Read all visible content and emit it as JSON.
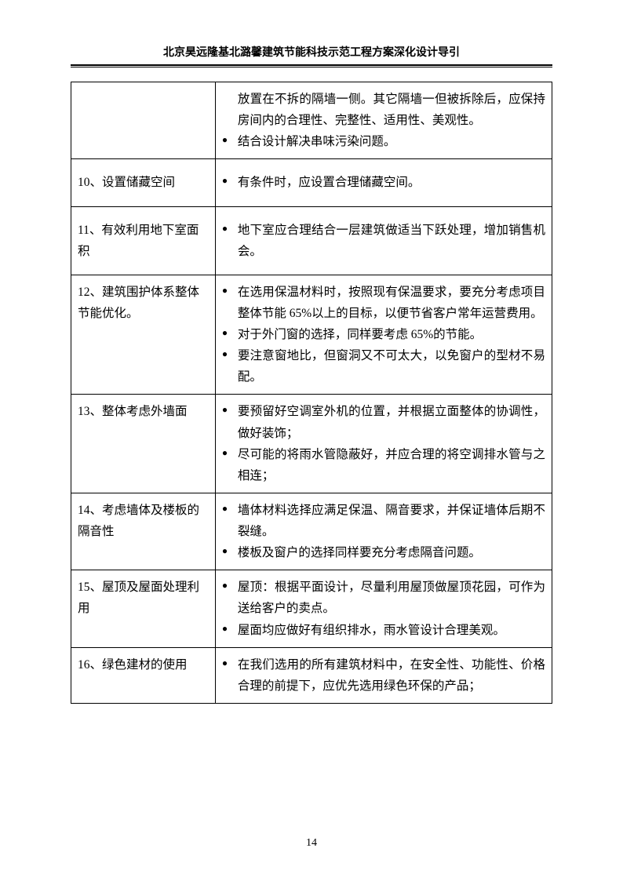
{
  "header": {
    "title": "北京昊远隆基北潞馨建筑节能科技示范工程方案深化设计导引"
  },
  "rows": [
    {
      "label": "",
      "items": [
        {
          "continuation": true,
          "text": "放置在不拆的隔墙一侧。其它隔墙一但被拆除后，应保持房间内的合理性、完整性、适用性、美观性。"
        },
        {
          "text": "结合设计解决串味污染问题。"
        }
      ]
    },
    {
      "label": "10、设置储藏空间",
      "items": [
        {
          "text": "有条件时，应设置合理储藏空间。"
        }
      ],
      "extraPad": true
    },
    {
      "label": "11、有效利用地下室面积",
      "items": [
        {
          "text": "地下室应合理结合一层建筑做适当下跃处理，增加销售机会。"
        }
      ],
      "extraPad": true
    },
    {
      "label": "12、建筑围护体系整体节能优化。",
      "items": [
        {
          "text": "在选用保温材料时，按照现有保温要求，要充分考虑项目整体节能 65%以上的目标，以便节省客户常年运营费用。"
        },
        {
          "text": "对于外门窗的选择，同样要考虑 65%的节能。"
        },
        {
          "text": "要注意窗地比，但窗洞又不可太大，以免窗户的型材不易配。"
        }
      ]
    },
    {
      "label": "13、整体考虑外墙面",
      "items": [
        {
          "text": "要预留好空调室外机的位置，并根据立面整体的协调性，做好装饰；"
        },
        {
          "text": "尽可能的将雨水管隐蔽好，并应合理的将空调排水管与之相连；"
        }
      ]
    },
    {
      "label": "14、考虑墙体及楼板的隔音性",
      "items": [
        {
          "text": "墙体材料选择应满足保温、隔音要求，并保证墙体后期不裂缝。"
        },
        {
          "text": "楼板及窗户的选择同样要充分考虑隔音问题。"
        }
      ]
    },
    {
      "label": "15、屋顶及屋面处理利用",
      "items": [
        {
          "text": "屋顶：根据平面设计，尽量利用屋顶做屋顶花园，可作为送给客户的卖点。"
        },
        {
          "text": "屋面均应做好有组织排水，雨水管设计合理美观。"
        }
      ]
    },
    {
      "label": "16、绿色建材的使用",
      "items": [
        {
          "text": "在我们选用的所有建筑材料中，在安全性、功能性、价格合理的前提下，应优先选用绿色环保的产品；"
        }
      ]
    }
  ],
  "pageNumber": "14"
}
